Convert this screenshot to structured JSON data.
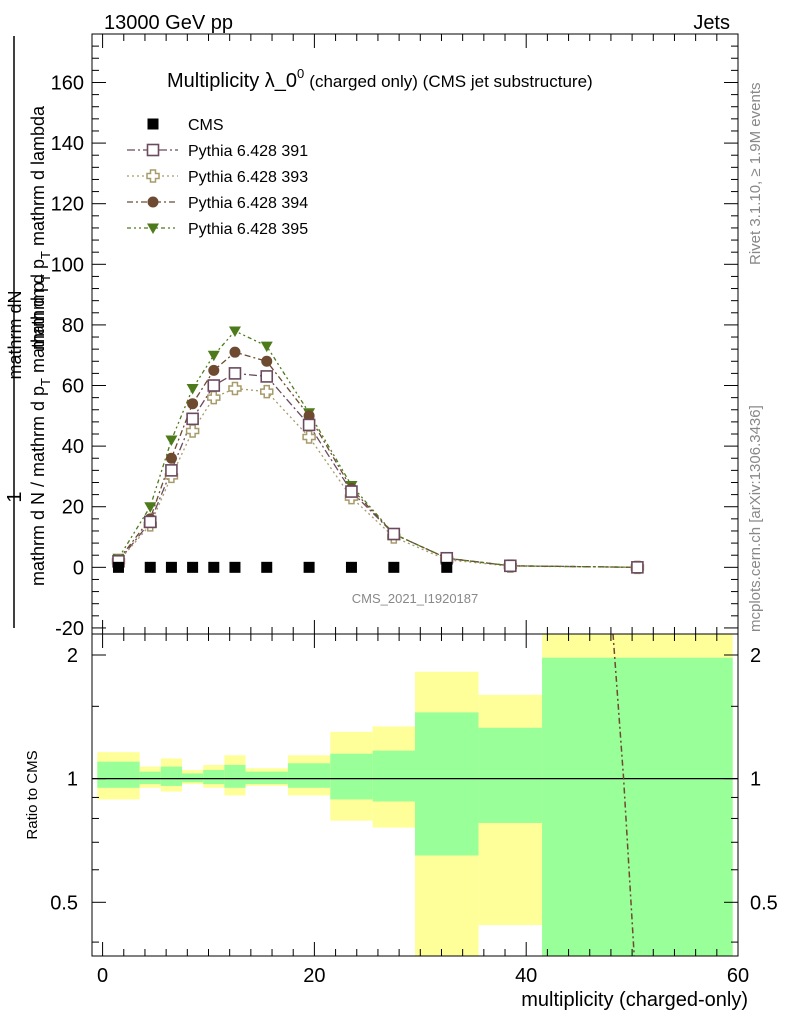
{
  "header": {
    "left": "13000 GeV pp",
    "right": "Jets"
  },
  "side_labels": {
    "rivet": "Rivet 3.1.10, ≥ 1.9M events",
    "mcplots": "mcplots.cern.ch [arXiv:1306.3436]"
  },
  "chart_data": [
    {
      "panel": "main",
      "type": "line",
      "title": "Multiplicity λ_0",
      "title_sup": "0",
      "title_suffix": "(charged only) (CMS jet substructure)",
      "watermark": "CMS_2021_I1920187",
      "ylabel_numerator": "1",
      "ylabel_num_sub": "mathrm dN",
      "ylabel_num_main": "mathrm d p",
      "ylabel_num_sub2": "T",
      "ylabel_num_tail": " mathrm d lambda",
      "ylabel_den_main": "mathrm d N / mathrm d p",
      "ylabel_den_sub": "T",
      "ylabel_den_tail": " mathrm d p",
      "ylabel_den_sub2": "T",
      "xlim": [
        -1,
        60
      ],
      "ylim": [
        -22,
        176
      ],
      "yticks": [
        -20,
        0,
        20,
        40,
        60,
        80,
        100,
        120,
        140,
        160
      ],
      "xticks": [
        0,
        20,
        40,
        60
      ],
      "legend_position": "top-left",
      "x": [
        1.5,
        4.5,
        6.5,
        8.5,
        10.5,
        12.5,
        15.5,
        19.5,
        23.5,
        27.5,
        32.5,
        38.5,
        50.5
      ],
      "series": [
        {
          "name": "CMS",
          "color": "#000000",
          "marker": "square-filled",
          "values": [
            0,
            0,
            0,
            0,
            0,
            0,
            0,
            0,
            0,
            0,
            0,
            0,
            0
          ]
        },
        {
          "name": "Pythia 6.428 391",
          "color": "#6b4a5e",
          "marker": "square-open",
          "dash": "8,3,2,3",
          "values": [
            2,
            15,
            32,
            49,
            60,
            64,
            63,
            47,
            25,
            11,
            3,
            0.5,
            0
          ]
        },
        {
          "name": "Pythia 6.428 393",
          "color": "#a89a6a",
          "marker": "cross-open",
          "dash": "2,3",
          "values": [
            2,
            14,
            30,
            45,
            56,
            59,
            58,
            43,
            23,
            10,
            2.5,
            0.4,
            0
          ]
        },
        {
          "name": "Pythia 6.428 394",
          "color": "#6e4a30",
          "marker": "circle-filled",
          "dash": "6,3,2,3",
          "values": [
            2.5,
            16,
            36,
            54,
            65,
            71,
            68,
            50,
            26,
            11,
            3,
            0.5,
            0
          ]
        },
        {
          "name": "Pythia 6.428 395",
          "color": "#4d7a1a",
          "marker": "triangle-down-filled",
          "dash": "4,3,2,3,2,3",
          "values": [
            3,
            20,
            42,
            59,
            70,
            78,
            73,
            51,
            27,
            11,
            3,
            0.5,
            0
          ]
        }
      ]
    },
    {
      "panel": "ratio",
      "type": "area",
      "ylabel": "Ratio to CMS",
      "xlabel": "multiplicity (charged-only)",
      "xlim": [
        -1,
        60
      ],
      "ylim": [
        0.37,
        2.25
      ],
      "yticks": [
        0.5,
        1,
        2
      ],
      "ytick_labels": [
        "0.5",
        "1",
        "2"
      ],
      "xticks": [
        0,
        20,
        40,
        60
      ],
      "bins": [
        {
          "lo": -0.5,
          "hi": 3.5,
          "y_lo": 0.89,
          "y_hi": 1.16,
          "g_lo": 0.95,
          "g_hi": 1.1
        },
        {
          "lo": 3.5,
          "hi": 5.5,
          "y_lo": 0.95,
          "y_hi": 1.07,
          "g_lo": 0.97,
          "g_hi": 1.04
        },
        {
          "lo": 5.5,
          "hi": 7.5,
          "y_lo": 0.93,
          "y_hi": 1.12,
          "g_lo": 0.96,
          "g_hi": 1.07
        },
        {
          "lo": 7.5,
          "hi": 9.5,
          "y_lo": 0.97,
          "y_hi": 1.05,
          "g_lo": 0.98,
          "g_hi": 1.03
        },
        {
          "lo": 9.5,
          "hi": 11.5,
          "y_lo": 0.95,
          "y_hi": 1.08,
          "g_lo": 0.97,
          "g_hi": 1.05
        },
        {
          "lo": 11.5,
          "hi": 13.5,
          "y_lo": 0.91,
          "y_hi": 1.14,
          "g_lo": 0.95,
          "g_hi": 1.08
        },
        {
          "lo": 13.5,
          "hi": 17.5,
          "y_lo": 0.96,
          "y_hi": 1.06,
          "g_lo": 0.97,
          "g_hi": 1.04
        },
        {
          "lo": 17.5,
          "hi": 21.5,
          "y_lo": 0.91,
          "y_hi": 1.14,
          "g_lo": 0.95,
          "g_hi": 1.09
        },
        {
          "lo": 21.5,
          "hi": 25.5,
          "y_lo": 0.79,
          "y_hi": 1.3,
          "g_lo": 0.89,
          "g_hi": 1.15
        },
        {
          "lo": 25.5,
          "hi": 29.5,
          "y_lo": 0.76,
          "y_hi": 1.34,
          "g_lo": 0.88,
          "g_hi": 1.17
        },
        {
          "lo": 29.5,
          "hi": 35.5,
          "y_lo": 0.37,
          "y_hi": 1.82,
          "g_lo": 0.65,
          "g_hi": 1.45
        },
        {
          "lo": 35.5,
          "hi": 41.5,
          "y_lo": 0.44,
          "y_hi": 1.6,
          "g_lo": 0.78,
          "g_hi": 1.33
        },
        {
          "lo": 41.5,
          "hi": 59.5,
          "y_lo": 0.37,
          "y_hi": 2.25,
          "g_lo": 0.37,
          "g_hi": 1.97
        }
      ],
      "ratio_line": {
        "x": [
          48.2,
          49.2,
          50.2
        ],
        "y": [
          2.25,
          1.0,
          0.37
        ],
        "color": "#6e4a30"
      }
    }
  ],
  "colors": {
    "band_outer": "#ffff99",
    "band_inner": "#99ff99",
    "frame": "#000000"
  }
}
